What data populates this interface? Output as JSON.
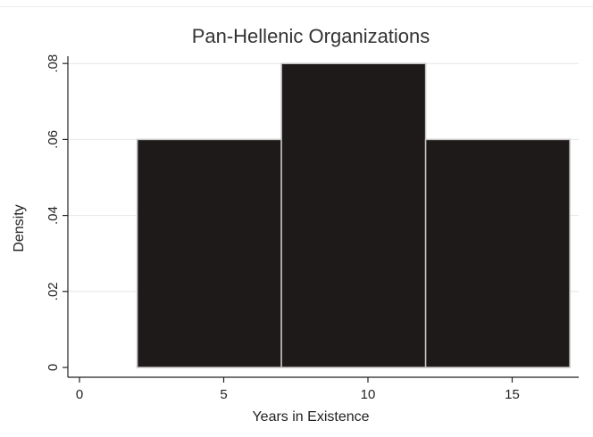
{
  "chart_data": {
    "type": "bar",
    "title": "Pan-Hellenic Organizations",
    "xlabel": "Years in Existence",
    "ylabel": "Density",
    "bins": [
      {
        "x0": 2,
        "x1": 7,
        "value": 0.06
      },
      {
        "x0": 7,
        "x1": 12,
        "value": 0.08
      },
      {
        "x0": 12,
        "x1": 17,
        "value": 0.06
      }
    ],
    "xlim": [
      0,
      17
    ],
    "ylim": [
      0,
      0.08
    ],
    "x_ticks": [
      {
        "value": 0,
        "label": "0"
      },
      {
        "value": 5,
        "label": "5"
      },
      {
        "value": 10,
        "label": "10"
      },
      {
        "value": 15,
        "label": "15"
      }
    ],
    "y_ticks": [
      {
        "value": 0,
        "label": "0"
      },
      {
        "value": 0.02,
        "label": ".02"
      },
      {
        "value": 0.04,
        "label": ".04"
      },
      {
        "value": 0.06,
        "label": ".06"
      },
      {
        "value": 0.08,
        "label": ".08"
      }
    ],
    "grid": true,
    "colors": {
      "bar_fill": "#1e1a1a",
      "bar_stroke": "#c8c8c8",
      "grid": "#e6e6e6",
      "axis": "#222222"
    }
  }
}
